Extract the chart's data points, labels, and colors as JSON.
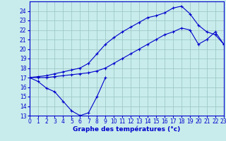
{
  "xlabel": "Graphe des températures (°c)",
  "background_color": "#c8ecec",
  "grid_color": "#a0c8c8",
  "line_color": "#0000cc",
  "x_hours": [
    0,
    1,
    2,
    3,
    4,
    5,
    6,
    7,
    8,
    9,
    10,
    11,
    12,
    13,
    14,
    15,
    16,
    17,
    18,
    19,
    20,
    21,
    22,
    23
  ],
  "line1_y": [
    17,
    16.6,
    15.9,
    15.5,
    14.5,
    13.5,
    13.0,
    13.3,
    15.0,
    17.0,
    null,
    null,
    null,
    null,
    null,
    null,
    null,
    null,
    null,
    null,
    null,
    null,
    null,
    null
  ],
  "line2_y": [
    17,
    17.0,
    17.0,
    17.1,
    17.2,
    17.3,
    17.4,
    17.5,
    17.7,
    18.0,
    18.5,
    19.0,
    19.5,
    20.0,
    20.5,
    21.0,
    21.5,
    21.8,
    22.2,
    22.0,
    20.5,
    21.0,
    21.8,
    20.5
  ],
  "line3_y": [
    17,
    17.1,
    17.2,
    17.4,
    17.6,
    17.8,
    18.0,
    18.5,
    19.5,
    20.5,
    21.2,
    21.8,
    22.3,
    22.8,
    23.3,
    23.5,
    23.8,
    24.3,
    24.5,
    23.7,
    22.5,
    21.8,
    21.5,
    20.5
  ],
  "ylim": [
    13,
    25
  ],
  "xlim": [
    0,
    23
  ],
  "yticks": [
    13,
    14,
    15,
    16,
    17,
    18,
    19,
    20,
    21,
    22,
    23,
    24
  ],
  "xticks": [
    0,
    1,
    2,
    3,
    4,
    5,
    6,
    7,
    8,
    9,
    10,
    11,
    12,
    13,
    14,
    15,
    16,
    17,
    18,
    19,
    20,
    21,
    22,
    23
  ],
  "tick_fontsize": 5.5,
  "xlabel_fontsize": 6.5,
  "marker_size": 3.0,
  "linewidth": 0.8
}
